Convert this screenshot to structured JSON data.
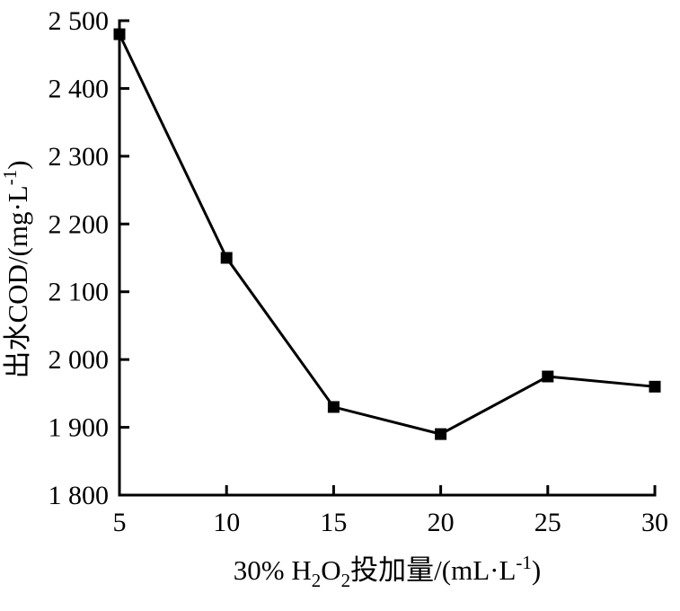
{
  "figure": {
    "background": "#ffffff",
    "foreground": "#000000"
  },
  "chart_data": {
    "type": "line",
    "title": "",
    "x": [
      5,
      10,
      15,
      20,
      25,
      30
    ],
    "y": [
      2480,
      2150,
      1930,
      1890,
      1975,
      1960
    ],
    "xlabel": "30% H2O2投加量/(mL·L-1)",
    "ylabel": "出水COD/(mg·L-1)",
    "xlabel_parts": [
      {
        "text": "30% H"
      },
      {
        "text": "2",
        "style": "sub"
      },
      {
        "text": "O"
      },
      {
        "text": "2",
        "style": "sub"
      },
      {
        "text": "投加量/(mL·L"
      },
      {
        "text": "-1",
        "style": "sup"
      },
      {
        "text": ")"
      }
    ],
    "ylabel_parts": [
      {
        "text": "出水COD/(mg·L"
      },
      {
        "text": "-1",
        "style": "sup"
      },
      {
        "text": ")"
      }
    ],
    "xlim": [
      5,
      30
    ],
    "ylim": [
      1800,
      2500
    ],
    "x_ticks": [
      5,
      10,
      15,
      20,
      25,
      30
    ],
    "x_tick_labels": [
      "5",
      "10",
      "15",
      "20",
      "25",
      "30"
    ],
    "y_ticks": [
      1800,
      1900,
      2000,
      2100,
      2200,
      2300,
      2400,
      2500
    ],
    "y_tick_labels": [
      "1 800",
      "1 900",
      "2 000",
      "2 100",
      "2 200",
      "2 300",
      "2 400",
      "2 500"
    ],
    "grid": false,
    "legend": "none",
    "marker": "square",
    "marker_size": 13,
    "marker_color": "#000000",
    "line_color": "#000000",
    "line_width": 3,
    "axis_color": "#000000",
    "axis_width": 3,
    "tick_direction": "in",
    "tick_length": 11
  }
}
